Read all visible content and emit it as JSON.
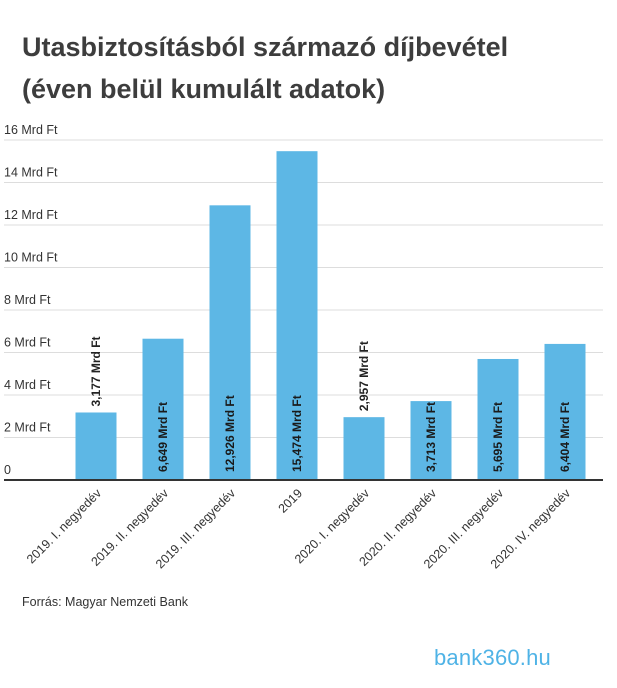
{
  "title_line1": "Utasbiztosításból származó díjbevétel",
  "title_line2": "(éven belül kumulált adatok)",
  "source": "Forrás: Magyar Nemzeti Bank",
  "logo": "bank360.hu",
  "colors": {
    "bar": "#5db7e5",
    "grid": "#dddddd",
    "axis": "#333333",
    "logo": "#4fb3e6"
  },
  "chart_data": {
    "type": "bar",
    "categories": [
      "2019. I. negyedév",
      "2019. II. negyedév",
      "2019. III. negyedév",
      "2019",
      "2020. I. negyedév",
      "2020. II. negyedév",
      "2020. III. negyedév",
      "2020. IV. negyedév"
    ],
    "values": [
      3.177,
      6.649,
      12.926,
      15.474,
      2.957,
      3.713,
      5.695,
      6.404
    ],
    "data_labels": [
      "3,177 Mrd Ft",
      "6,649 Mrd Ft",
      "12,926 Mrd Ft",
      "15,474 Mrd Ft",
      "2,957 Mrd Ft",
      "3,713 Mrd Ft",
      "5,695 Mrd Ft",
      "6,404 Mrd Ft"
    ],
    "label_position": [
      "above",
      "inside",
      "inside",
      "inside",
      "above",
      "inside",
      "inside",
      "inside"
    ],
    "yticks": [
      0,
      2,
      4,
      6,
      8,
      10,
      12,
      14,
      16
    ],
    "ytick_labels": [
      "0",
      "2 Mrd Ft",
      "4 Mrd Ft",
      "6 Mrd Ft",
      "8 Mrd Ft",
      "10 Mrd Ft",
      "12 Mrd Ft",
      "14 Mrd Ft",
      "16 Mrd Ft"
    ],
    "ylim": [
      0,
      16
    ],
    "grid": true,
    "legend": "none"
  }
}
